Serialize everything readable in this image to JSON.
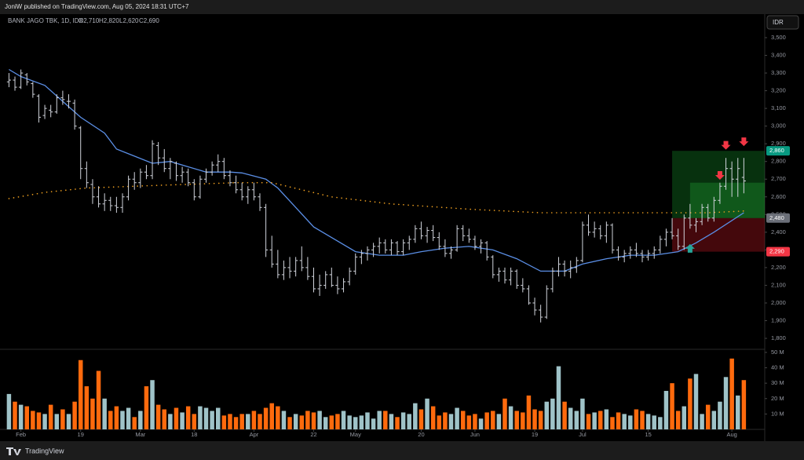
{
  "header": {
    "publisher": "JoniW published on TradingView.com, Aug 05, 2024 18:31 UTC+7",
    "symbol": "BANK JAGO TBK, 1D, IDX",
    "ohlc": [
      "O2,710",
      "H2,820",
      "L2,620",
      "C2,690"
    ],
    "currency": "IDR"
  },
  "footer": {
    "brand": "TradingView"
  },
  "chart_data": {
    "type": "ohlc",
    "bar_color": "#d1d4dc",
    "up_volume_color": "#9fc3c8",
    "down_volume_color": "#ff6a0d",
    "xlim": [
      -1.5,
      126.5
    ],
    "xticks": [
      {
        "value": 2,
        "label": "Feb"
      },
      {
        "value": 12,
        "label": "19"
      },
      {
        "value": 22,
        "label": "Mar"
      },
      {
        "value": 31,
        "label": "18"
      },
      {
        "value": 41,
        "label": "Apr"
      },
      {
        "value": 51,
        "label": "22"
      },
      {
        "value": 58,
        "label": "May"
      },
      {
        "value": 69,
        "label": "20"
      },
      {
        "value": 78,
        "label": "Jun"
      },
      {
        "value": 88,
        "label": "19"
      },
      {
        "value": 96,
        "label": "Jul"
      },
      {
        "value": 107,
        "label": "15"
      },
      {
        "value": 121,
        "label": "Aug"
      }
    ],
    "ylim": [
      1738,
      3633
    ],
    "yticks": [
      {
        "value": 1800,
        "label": "1,800"
      },
      {
        "value": 1900,
        "label": "1,900"
      },
      {
        "value": 2000,
        "label": "2,000"
      },
      {
        "value": 2100,
        "label": "2,100"
      },
      {
        "value": 2200,
        "label": "2,200"
      },
      {
        "value": 2300,
        "label": "2,300"
      },
      {
        "value": 2400,
        "label": "2,400"
      },
      {
        "value": 2500,
        "label": "2,500"
      },
      {
        "value": 2600,
        "label": "2,600"
      },
      {
        "value": 2700,
        "label": "2,700"
      },
      {
        "value": 2800,
        "label": "2,800"
      },
      {
        "value": 2900,
        "label": "2,900"
      },
      {
        "value": 3000,
        "label": "3,000"
      },
      {
        "value": 3100,
        "label": "3,100"
      },
      {
        "value": 3200,
        "label": "3,200"
      },
      {
        "value": 3300,
        "label": "3,300"
      },
      {
        "value": 3400,
        "label": "3,400"
      },
      {
        "value": 3500,
        "label": "3,500"
      }
    ],
    "bars": [
      [
        3250,
        3300,
        3220,
        3260
      ],
      [
        3260,
        3280,
        3200,
        3220
      ],
      [
        3220,
        3320,
        3210,
        3300
      ],
      [
        3290,
        3300,
        3230,
        3250
      ],
      [
        3240,
        3250,
        3160,
        3180
      ],
      [
        3170,
        3180,
        3020,
        3050
      ],
      [
        3060,
        3120,
        3040,
        3100
      ],
      [
        3090,
        3120,
        3050,
        3080
      ],
      [
        3080,
        3180,
        3070,
        3160
      ],
      [
        3160,
        3200,
        3120,
        3150
      ],
      [
        3140,
        3180,
        3100,
        3140
      ],
      [
        3130,
        3150,
        2980,
        3000
      ],
      [
        2990,
        3000,
        2700,
        2760
      ],
      [
        2760,
        2800,
        2650,
        2680
      ],
      [
        2670,
        2700,
        2560,
        2600
      ],
      [
        2600,
        2660,
        2540,
        2560
      ],
      [
        2560,
        2620,
        2520,
        2580
      ],
      [
        2580,
        2600,
        2520,
        2550
      ],
      [
        2550,
        2600,
        2510,
        2540
      ],
      [
        2540,
        2620,
        2510,
        2600
      ],
      [
        2600,
        2720,
        2580,
        2700
      ],
      [
        2700,
        2740,
        2640,
        2680
      ],
      [
        2680,
        2760,
        2650,
        2740
      ],
      [
        2740,
        2780,
        2700,
        2720
      ],
      [
        2720,
        2920,
        2700,
        2900
      ],
      [
        2890,
        2910,
        2780,
        2820
      ],
      [
        2820,
        2870,
        2740,
        2760
      ],
      [
        2760,
        2820,
        2700,
        2800
      ],
      [
        2790,
        2800,
        2690,
        2720
      ],
      [
        2720,
        2770,
        2680,
        2740
      ],
      [
        2740,
        2760,
        2660,
        2680
      ],
      [
        2680,
        2700,
        2580,
        2600
      ],
      [
        2600,
        2720,
        2590,
        2700
      ],
      [
        2700,
        2760,
        2680,
        2740
      ],
      [
        2740,
        2800,
        2720,
        2780
      ],
      [
        2780,
        2840,
        2740,
        2800
      ],
      [
        2800,
        2820,
        2700,
        2720
      ],
      [
        2720,
        2750,
        2660,
        2680
      ],
      [
        2680,
        2720,
        2620,
        2640
      ],
      [
        2640,
        2680,
        2580,
        2600
      ],
      [
        2600,
        2660,
        2560,
        2640
      ],
      [
        2640,
        2680,
        2580,
        2600
      ],
      [
        2600,
        2620,
        2520,
        2540
      ],
      [
        2540,
        2560,
        2260,
        2300
      ],
      [
        2300,
        2380,
        2200,
        2220
      ],
      [
        2220,
        2300,
        2140,
        2160
      ],
      [
        2160,
        2240,
        2130,
        2200
      ],
      [
        2200,
        2260,
        2140,
        2180
      ],
      [
        2180,
        2260,
        2150,
        2240
      ],
      [
        2240,
        2320,
        2180,
        2200
      ],
      [
        2200,
        2260,
        2130,
        2150
      ],
      [
        2150,
        2200,
        2060,
        2080
      ],
      [
        2080,
        2160,
        2040,
        2100
      ],
      [
        2100,
        2180,
        2080,
        2160
      ],
      [
        2160,
        2200,
        2090,
        2100
      ],
      [
        2100,
        2150,
        2050,
        2080
      ],
      [
        2080,
        2140,
        2060,
        2120
      ],
      [
        2120,
        2200,
        2100,
        2180
      ],
      [
        2180,
        2280,
        2160,
        2260
      ],
      [
        2260,
        2300,
        2220,
        2280
      ],
      [
        2280,
        2320,
        2240,
        2300
      ],
      [
        2300,
        2340,
        2260,
        2320
      ],
      [
        2320,
        2370,
        2280,
        2340
      ],
      [
        2340,
        2360,
        2280,
        2300
      ],
      [
        2300,
        2360,
        2270,
        2340
      ],
      [
        2340,
        2350,
        2270,
        2290
      ],
      [
        2290,
        2360,
        2270,
        2340
      ],
      [
        2340,
        2380,
        2300,
        2360
      ],
      [
        2360,
        2440,
        2340,
        2420
      ],
      [
        2420,
        2460,
        2360,
        2380
      ],
      [
        2380,
        2430,
        2340,
        2410
      ],
      [
        2410,
        2440,
        2350,
        2370
      ],
      [
        2370,
        2400,
        2300,
        2320
      ],
      [
        2320,
        2360,
        2260,
        2280
      ],
      [
        2280,
        2320,
        2250,
        2300
      ],
      [
        2300,
        2440,
        2290,
        2420
      ],
      [
        2420,
        2440,
        2350,
        2380
      ],
      [
        2380,
        2420,
        2340,
        2360
      ],
      [
        2360,
        2380,
        2300,
        2320
      ],
      [
        2320,
        2360,
        2280,
        2340
      ],
      [
        2340,
        2350,
        2240,
        2260
      ],
      [
        2260,
        2270,
        2140,
        2160
      ],
      [
        2160,
        2200,
        2120,
        2180
      ],
      [
        2180,
        2200,
        2110,
        2130
      ],
      [
        2130,
        2200,
        2100,
        2180
      ],
      [
        2180,
        2190,
        2080,
        2100
      ],
      [
        2100,
        2140,
        2060,
        2080
      ],
      [
        2080,
        2100,
        1990,
        2000
      ],
      [
        2000,
        2030,
        1930,
        1960
      ],
      [
        1960,
        1990,
        1890,
        1920
      ],
      [
        1920,
        2100,
        1910,
        2080
      ],
      [
        2080,
        2200,
        2060,
        2180
      ],
      [
        2180,
        2260,
        2150,
        2220
      ],
      [
        2220,
        2240,
        2150,
        2180
      ],
      [
        2180,
        2240,
        2140,
        2200
      ],
      [
        2200,
        2260,
        2170,
        2240
      ],
      [
        2240,
        2460,
        2230,
        2440
      ],
      [
        2440,
        2500,
        2380,
        2400
      ],
      [
        2400,
        2460,
        2370,
        2420
      ],
      [
        2420,
        2440,
        2360,
        2380
      ],
      [
        2380,
        2460,
        2340,
        2440
      ],
      [
        2440,
        2450,
        2280,
        2300
      ],
      [
        2300,
        2320,
        2240,
        2260
      ],
      [
        2260,
        2300,
        2230,
        2280
      ],
      [
        2280,
        2320,
        2250,
        2300
      ],
      [
        2300,
        2340,
        2260,
        2280
      ],
      [
        2280,
        2300,
        2230,
        2260
      ],
      [
        2260,
        2300,
        2240,
        2280
      ],
      [
        2280,
        2320,
        2250,
        2300
      ],
      [
        2300,
        2380,
        2280,
        2360
      ],
      [
        2360,
        2420,
        2320,
        2400
      ],
      [
        2400,
        2480,
        2360,
        2380
      ],
      [
        2380,
        2420,
        2300,
        2320
      ],
      [
        2320,
        2500,
        2300,
        2480
      ],
      [
        2480,
        2560,
        2420,
        2440
      ],
      [
        2440,
        2480,
        2400,
        2460
      ],
      [
        2460,
        2560,
        2440,
        2540
      ],
      [
        2540,
        2560,
        2460,
        2480
      ],
      [
        2480,
        2600,
        2460,
        2580
      ],
      [
        2580,
        2680,
        2560,
        2660
      ],
      [
        2660,
        2820,
        2640,
        2760
      ],
      [
        2760,
        2800,
        2600,
        2700
      ],
      [
        2700,
        2820,
        2600,
        2760
      ],
      [
        2710,
        2820,
        2620,
        2690
      ]
    ],
    "lines": [
      {
        "color": "#5b8fe6",
        "style": "solid",
        "x": [
          0,
          2,
          6,
          9,
          12,
          16,
          18,
          21,
          24,
          27,
          30,
          33,
          37,
          39,
          43,
          45,
          48,
          51,
          55,
          58,
          62,
          66,
          69,
          73,
          77,
          81,
          85,
          89,
          93,
          96,
          100,
          104,
          108,
          112,
          115,
          118,
          123
        ],
        "values": [
          3320,
          3280,
          3230,
          3140,
          3050,
          2960,
          2870,
          2830,
          2790,
          2800,
          2770,
          2740,
          2740,
          2735,
          2700,
          2650,
          2540,
          2430,
          2350,
          2290,
          2270,
          2270,
          2290,
          2310,
          2320,
          2300,
          2250,
          2180,
          2180,
          2220,
          2250,
          2270,
          2270,
          2290,
          2340,
          2400,
          2510
        ]
      },
      {
        "color": "#f0a020",
        "style": "dotted",
        "x": [
          0,
          6,
          13,
          25,
          38,
          44,
          54,
          64,
          77,
          89,
          104,
          117,
          123
        ],
        "values": [
          2590,
          2625,
          2650,
          2665,
          2680,
          2680,
          2600,
          2560,
          2530,
          2510,
          2510,
          2510,
          2520
        ]
      }
    ],
    "position": {
      "start": 111,
      "target": {
        "value": 2860,
        "label": "2,860"
      },
      "entry": {
        "value": 2480,
        "label": "2,480"
      },
      "stop": {
        "value": 2290,
        "label": "2,290"
      },
      "zone": {
        "start": 114,
        "top": 2680
      }
    },
    "arrows": [
      {
        "index": 120,
        "price": 2880,
        "direction": "down"
      },
      {
        "index": 123,
        "price": 2900,
        "direction": "down"
      },
      {
        "index": 119,
        "price": 2710,
        "direction": "down"
      },
      {
        "index": 114,
        "price": 2320,
        "direction": "up"
      }
    ],
    "volume": {
      "ylim": [
        0,
        52
      ],
      "yticks": [
        {
          "value": 10,
          "label": "10 M"
        },
        {
          "value": 20,
          "label": "20 M"
        },
        {
          "value": 30,
          "label": "30 M"
        },
        {
          "value": 40,
          "label": "40 M"
        },
        {
          "value": 50,
          "label": "50 M"
        }
      ],
      "values": [
        23,
        18,
        16,
        15,
        12,
        11,
        10,
        16,
        10,
        13,
        10,
        18,
        45,
        28,
        20,
        38,
        20,
        12,
        15,
        12,
        14,
        8,
        12,
        28,
        32,
        16,
        13,
        10,
        14,
        11,
        15,
        10,
        15,
        14,
        12,
        14,
        9,
        10,
        8,
        10,
        10,
        12,
        10,
        14,
        17,
        15,
        12,
        8,
        10,
        9,
        12,
        11,
        12,
        8,
        9,
        10,
        12,
        9,
        8,
        9,
        11,
        7,
        12,
        12,
        10,
        8,
        11,
        10,
        17,
        13,
        20,
        15,
        9,
        11,
        10,
        14,
        12,
        9,
        10,
        7,
        11,
        12,
        10,
        20,
        15,
        12,
        11,
        22,
        13,
        12,
        18,
        20,
        41,
        18,
        14,
        12,
        20,
        10,
        11,
        12,
        13,
        8,
        11,
        10,
        9,
        13,
        12,
        10,
        9,
        8,
        25,
        30,
        12,
        15,
        33,
        36,
        10,
        16,
        12,
        18,
        34,
        46,
        22,
        32
      ]
    }
  }
}
